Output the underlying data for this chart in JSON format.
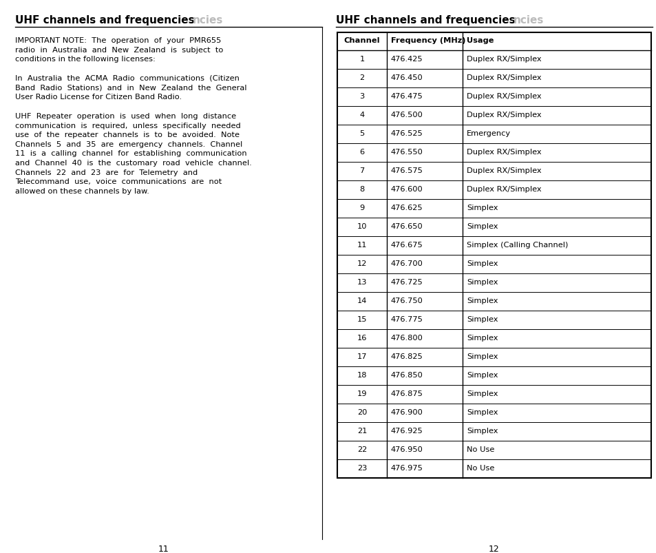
{
  "title": "UHF channels and frequencies",
  "title_ghost": "ncies",
  "left_page_num": "11",
  "right_page_num": "12",
  "para1": "IMPORTANT NOTE:  The  operation  of  your  PMR655\nradio  in  Australia  and  New  Zealand  is  subject  to\nconditions in the following licenses:",
  "para2": "In  Australia  the  ACMA  Radio  communications  (Citizen\nBand  Radio  Stations)  and  in  New  Zealand  the  General\nUser Radio License for Citizen Band Radio.",
  "para3_lines": [
    "UHF  Repeater  operation  is  used  when  long  distance",
    "communication  is  required,  unless  specifically  needed",
    "use  of  the  repeater  channels  is  to  be  avoided.  Note",
    "Channels  5  and  35  are  emergency  channels.  Channel",
    "11  is  a  calling  channel  for  establishing  communication",
    "and  Channel  40  is  the  customary  road  vehicle  channel.",
    "Channels  22  and  23  are  for  Telemetry  and",
    "Telecommand  use,  voice  communications  are  not",
    "allowed on these channels by law."
  ],
  "table_headers": [
    "Channel",
    "Frequency (MHz)",
    "Usage"
  ],
  "table_data": [
    [
      "1",
      "476.425",
      "Duplex RX/Simplex"
    ],
    [
      "2",
      "476.450",
      "Duplex RX/Simplex"
    ],
    [
      "3",
      "476.475",
      "Duplex RX/Simplex"
    ],
    [
      "4",
      "476.500",
      "Duplex RX/Simplex"
    ],
    [
      "5",
      "476.525",
      "Emergency"
    ],
    [
      "6",
      "476.550",
      "Duplex RX/Simplex"
    ],
    [
      "7",
      "476.575",
      "Duplex RX/Simplex"
    ],
    [
      "8",
      "476.600",
      "Duplex RX/Simplex"
    ],
    [
      "9",
      "476.625",
      "Simplex"
    ],
    [
      "10",
      "476.650",
      "Simplex"
    ],
    [
      "11",
      "476.675",
      "Simplex (Calling Channel)"
    ],
    [
      "12",
      "476.700",
      "Simplex"
    ],
    [
      "13",
      "476.725",
      "Simplex"
    ],
    [
      "14",
      "476.750",
      "Simplex"
    ],
    [
      "15",
      "476.775",
      "Simplex"
    ],
    [
      "16",
      "476.800",
      "Simplex"
    ],
    [
      "17",
      "476.825",
      "Simplex"
    ],
    [
      "18",
      "476.850",
      "Simplex"
    ],
    [
      "19",
      "476.875",
      "Simplex"
    ],
    [
      "20",
      "476.900",
      "Simplex"
    ],
    [
      "21",
      "476.925",
      "Simplex"
    ],
    [
      "22",
      "476.950",
      "No Use"
    ],
    [
      "23",
      "476.975",
      "No Use"
    ]
  ],
  "bg_color": "#ffffff",
  "text_color": "#000000",
  "border_color": "#000000",
  "ghost_text_color": "#bbbbbb",
  "font_size_title": 11.0,
  "font_size_body": 8.2,
  "font_size_table": 8.2,
  "font_size_page_num": 9.0
}
